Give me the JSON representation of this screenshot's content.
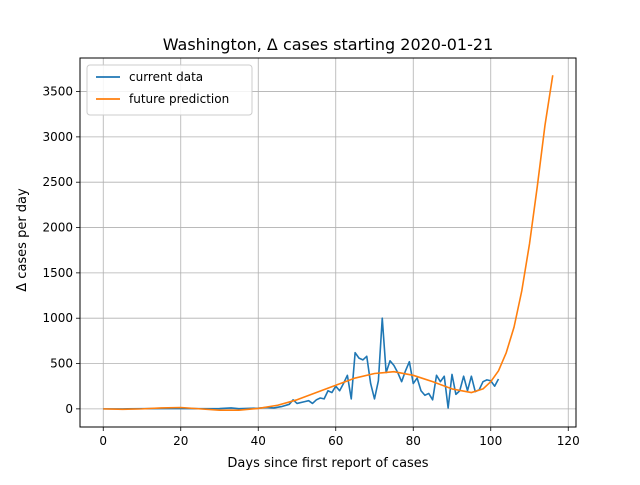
{
  "chart_data": {
    "type": "line",
    "title": "Washington, Δ cases starting 2020-01-21",
    "xlabel": "Days since first report of cases",
    "ylabel": "Δ cases per day",
    "xlim": [
      -6,
      122
    ],
    "ylim": [
      -200,
      3870
    ],
    "x_ticks": [
      0,
      20,
      40,
      60,
      80,
      100,
      120
    ],
    "y_ticks": [
      0,
      500,
      1000,
      1500,
      2000,
      2500,
      3000,
      3500
    ],
    "grid": true,
    "legend_position": "upper-left",
    "series": [
      {
        "name": "current data",
        "color": "#1f77b4",
        "x": [
          0,
          5,
          10,
          15,
          20,
          25,
          30,
          33,
          35,
          37,
          40,
          42,
          44,
          46,
          48,
          49,
          50,
          52,
          53,
          54,
          55,
          56,
          57,
          58,
          59,
          60,
          61,
          62,
          63,
          64,
          65,
          66,
          67,
          68,
          69,
          70,
          71,
          72,
          73,
          74,
          75,
          76,
          77,
          78,
          79,
          80,
          81,
          82,
          83,
          84,
          85,
          86,
          87,
          88,
          89,
          90,
          91,
          92,
          93,
          94,
          95,
          96,
          97,
          98,
          99,
          100,
          101,
          102
        ],
        "y": [
          0,
          0,
          2,
          3,
          5,
          2,
          3,
          10,
          2,
          5,
          8,
          15,
          10,
          25,
          50,
          100,
          60,
          80,
          90,
          60,
          100,
          120,
          110,
          200,
          180,
          250,
          200,
          280,
          370,
          110,
          620,
          560,
          540,
          580,
          280,
          110,
          310,
          1000,
          400,
          530,
          480,
          400,
          300,
          420,
          520,
          280,
          340,
          200,
          150,
          170,
          100,
          370,
          300,
          360,
          10,
          380,
          160,
          200,
          360,
          200,
          360,
          190,
          210,
          300,
          320,
          310,
          250,
          330
        ]
      },
      {
        "name": "future prediction",
        "color": "#ff7f0e",
        "x": [
          0,
          5,
          10,
          15,
          20,
          25,
          30,
          35,
          40,
          45,
          50,
          55,
          60,
          65,
          70,
          75,
          80,
          85,
          90,
          95,
          98,
          100,
          102,
          104,
          106,
          108,
          110,
          112,
          114,
          116
        ],
        "y": [
          0,
          -5,
          0,
          10,
          15,
          0,
          -15,
          -15,
          5,
          40,
          100,
          180,
          260,
          340,
          390,
          410,
          370,
          300,
          220,
          180,
          220,
          300,
          420,
          620,
          900,
          1300,
          1820,
          2450,
          3130,
          3680
        ]
      }
    ]
  }
}
